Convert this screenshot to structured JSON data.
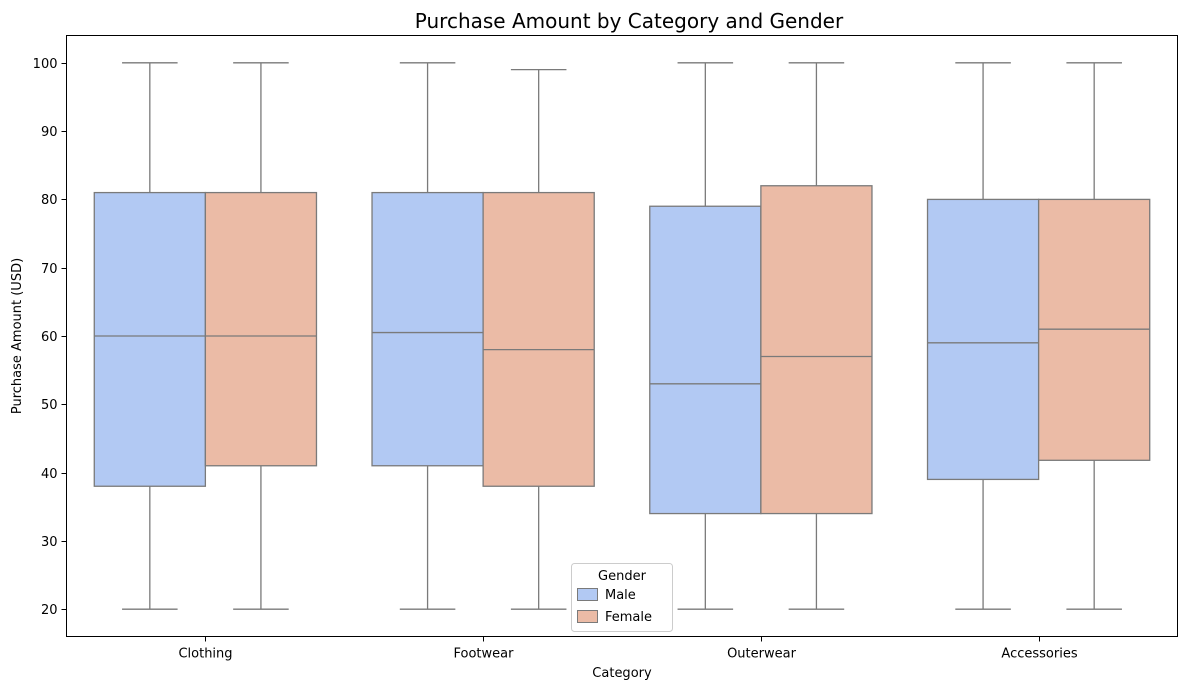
{
  "chart_data": {
    "type": "box",
    "title": "Purchase Amount by Category and Gender",
    "xlabel": "Category",
    "ylabel": "Purchase Amount (USD)",
    "ylim": [
      16,
      104
    ],
    "yticks": [
      20,
      30,
      40,
      50,
      60,
      70,
      80,
      90,
      100
    ],
    "categories": [
      "Clothing",
      "Footwear",
      "Outerwear",
      "Accessories"
    ],
    "grid": false,
    "legend": {
      "title": "Gender",
      "placement": "bottom-center"
    },
    "series": [
      {
        "name": "Male",
        "color": "#b2c9f3",
        "boxes": [
          {
            "category": "Clothing",
            "min": 20,
            "q1": 38,
            "median": 60,
            "q3": 81,
            "max": 100
          },
          {
            "category": "Footwear",
            "min": 20,
            "q1": 41,
            "median": 60.5,
            "q3": 81,
            "max": 100
          },
          {
            "category": "Outerwear",
            "min": 20,
            "q1": 34,
            "median": 53,
            "q3": 79,
            "max": 100
          },
          {
            "category": "Accessories",
            "min": 20,
            "q1": 39,
            "median": 59,
            "q3": 80,
            "max": 100
          }
        ]
      },
      {
        "name": "Female",
        "color": "#ebbba6",
        "boxes": [
          {
            "category": "Clothing",
            "min": 20,
            "q1": 41,
            "median": 60,
            "q3": 81,
            "max": 100
          },
          {
            "category": "Footwear",
            "min": 20,
            "q1": 38,
            "median": 58,
            "q3": 81,
            "max": 99
          },
          {
            "category": "Outerwear",
            "min": 20,
            "q1": 34,
            "median": 57,
            "q3": 82,
            "max": 100
          },
          {
            "category": "Accessories",
            "min": 20,
            "q1": 41.8,
            "median": 61,
            "q3": 80,
            "max": 100
          }
        ]
      }
    ]
  }
}
